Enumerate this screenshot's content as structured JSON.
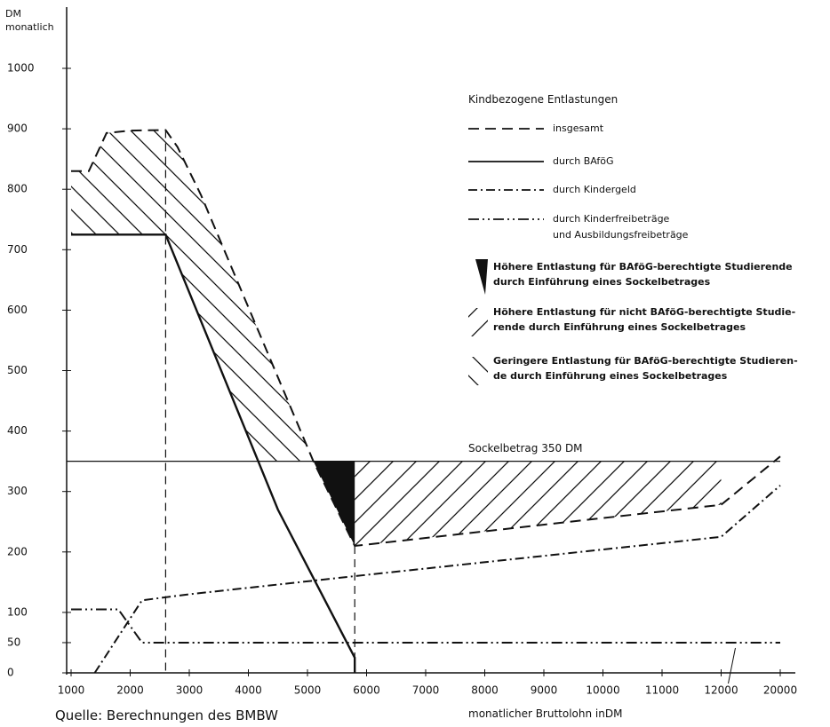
{
  "chart_data": {
    "type": "line",
    "y_label": "DM\nmonatlich",
    "x_label": "monatlicher Bruttolohn inDM",
    "source": "Quelle: Berechnungen des BMBW",
    "legend_title": "Kindbezogene Entlastungen",
    "xlim": [
      1000,
      20000
    ],
    "xticks": [
      1000,
      2000,
      3000,
      4000,
      5000,
      6000,
      7000,
      8000,
      9000,
      10000,
      11000,
      12000,
      20000
    ],
    "ylim": [
      0,
      1000
    ],
    "yticks": [
      0,
      50,
      100,
      200,
      300,
      400,
      500,
      600,
      700,
      800,
      900,
      1000
    ],
    "sockel": {
      "value": 350,
      "label": "Sockelbetrag 350 DM"
    },
    "vlines": [
      2600,
      5800
    ],
    "series": [
      {
        "name": "insgesamt",
        "color": "#111111",
        "dash": "dashed",
        "x": [
          1000,
          1300,
          1600,
          2000,
          2600,
          2800,
          3200,
          5100,
          5800,
          12000,
          20000
        ],
        "values": [
          830,
          830,
          893,
          897,
          898,
          870,
          790,
          350,
          210,
          278,
          358
        ]
      },
      {
        "name": "durch BAföG",
        "color": "#111111",
        "dash": "solid",
        "x": [
          1000,
          2600,
          4000,
          4500,
          5800,
          5800
        ],
        "values": [
          725,
          725,
          390,
          270,
          25,
          0
        ]
      },
      {
        "name": "durch Kindergeld",
        "color": "#111111",
        "dash": "dashdot",
        "x": [
          1400,
          2200,
          3000,
          5800,
          12000,
          20000
        ],
        "values": [
          0,
          120,
          130,
          160,
          225,
          310
        ]
      },
      {
        "name": "durch Kinderfreibeträge\nund Ausbildungsfreibeträge",
        "color": "#111111",
        "dash": "dashdotdot",
        "x": [
          1000,
          1800,
          2200,
          20000
        ],
        "values": [
          105,
          105,
          50,
          50
        ]
      }
    ],
    "areas": [
      {
        "name": "Höhere Entlastung für BAföG-berechtigte Studierende\ndurch Einführung eines Sockelbetrages",
        "fill": "solid",
        "upper": "sockel",
        "lower": [
          0
        ],
        "xlim": [
          5100,
          5800
        ]
      },
      {
        "name": "Höhere Entlastung für nicht BAföG-berechtigte Studie-\nrende durch Einführung eines Sockelbetrages",
        "fill": "hatch-fwd",
        "upper": "sockel",
        "lower": [
          0
        ],
        "xlim": [
          5800,
          12000
        ]
      },
      {
        "name": "Geringere Entlastung für BAföG-berechtigte Studieren-\nde durch Einführung eines Sockelbetrages",
        "fill": "hatch-back",
        "upper": 0,
        "lower": [
          1,
          "sockel"
        ],
        "xlim": [
          1000,
          5100
        ]
      }
    ]
  }
}
